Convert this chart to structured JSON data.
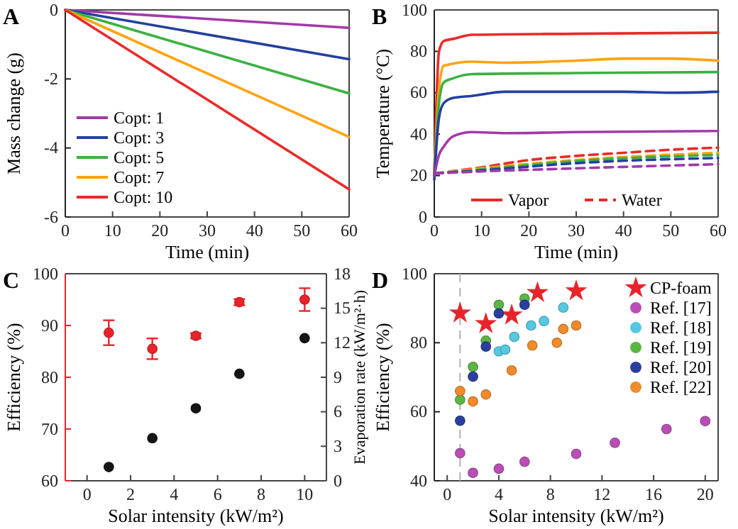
{
  "chart_data": [
    {
      "type": "line",
      "title": "A",
      "xlabel": "Time (min)",
      "ylabel": "Mass change (g)",
      "x": [
        0,
        60
      ],
      "xlim": [
        0,
        60
      ],
      "xticks": [
        0,
        10,
        20,
        30,
        40,
        50,
        60
      ],
      "ylim": [
        -6,
        0
      ],
      "yticks": [
        -6,
        -4,
        -2,
        0
      ],
      "legend": "bottom left",
      "series": [
        {
          "name": "Copt: 1",
          "color": "#a23aa8",
          "values": [
            0,
            -0.52
          ]
        },
        {
          "name": "Copt: 3",
          "color": "#24409e",
          "values": [
            0,
            -1.43
          ]
        },
        {
          "name": "Copt: 5",
          "color": "#3cb043",
          "values": [
            0,
            -2.42
          ]
        },
        {
          "name": "Copt: 7",
          "color": "#ffa30f",
          "values": [
            0,
            -3.68
          ]
        },
        {
          "name": "Copt: 10",
          "color": "#ea2a2a",
          "values": [
            0,
            -5.2
          ]
        }
      ]
    },
    {
      "type": "line",
      "title": "B",
      "xlabel": "Time (min)",
      "ylabel": "Temperature (°C)",
      "xlim": [
        0,
        60
      ],
      "xticks": [
        0,
        10,
        20,
        30,
        40,
        50,
        60
      ],
      "ylim": [
        0,
        100
      ],
      "yticks": [
        0,
        20,
        40,
        60,
        80,
        100
      ],
      "legend": "bottom",
      "series": [
        {
          "name": "Vapor",
          "color": "#ea2a2a",
          "line_style": "solid",
          "x": [
            0,
            1,
            2,
            4,
            8,
            30,
            60
          ],
          "values": [
            20,
            80,
            85,
            86,
            88,
            88.5,
            89
          ]
        },
        {
          "color": "#ffa30f",
          "line_style": "solid",
          "x": [
            0,
            1,
            2,
            8,
            15,
            30,
            40,
            50,
            60
          ],
          "values": [
            20,
            62,
            73,
            75,
            74.5,
            75.5,
            76.5,
            76.5,
            75.5
          ]
        },
        {
          "color": "#3cb043",
          "line_style": "solid",
          "x": [
            0,
            1,
            2,
            4,
            8,
            30,
            60
          ],
          "values": [
            20,
            55,
            65,
            67,
            69,
            69.5,
            70
          ]
        },
        {
          "color": "#24409e",
          "line_style": "solid",
          "x": [
            0,
            1,
            2,
            4,
            8,
            15,
            40,
            50,
            60
          ],
          "values": [
            18,
            48,
            55,
            57.5,
            58.5,
            60.5,
            60.5,
            60,
            60.5
          ]
        },
        {
          "color": "#a23aa8",
          "line_style": "solid",
          "x": [
            0,
            1,
            2,
            4,
            8,
            15,
            30,
            60
          ],
          "values": [
            20,
            30,
            34,
            39,
            41,
            40.5,
            41,
            41.5
          ]
        },
        {
          "name": "Water",
          "color": "#ea2a2a",
          "line_style": "dashed",
          "x": [
            0,
            10,
            20,
            30,
            40,
            50,
            60
          ],
          "values": [
            21,
            24,
            27.5,
            29.5,
            31,
            32.5,
            33.5
          ]
        },
        {
          "color": "#ffa30f",
          "line_style": "dashed",
          "x": [
            0,
            10,
            30,
            60
          ],
          "values": [
            21,
            23.5,
            27.5,
            31
          ]
        },
        {
          "color": "#3cb043",
          "line_style": "dashed",
          "x": [
            0,
            10,
            30,
            60
          ],
          "values": [
            21,
            23,
            27,
            30
          ]
        },
        {
          "color": "#24409e",
          "line_style": "dashed",
          "x": [
            0,
            10,
            30,
            60
          ],
          "values": [
            21,
            22.5,
            26,
            28.5
          ]
        },
        {
          "color": "#a23aa8",
          "line_style": "dashed",
          "x": [
            0,
            10,
            30,
            60
          ],
          "values": [
            21,
            22,
            23.5,
            25.5
          ]
        }
      ]
    },
    {
      "type": "scatter",
      "title": "C",
      "xlabel": "Solar intensity (kW/m²)",
      "ylabel": "Efficiency (%)",
      "y2label": "Evaporation rate (kW/m²·h)",
      "marker": "circle",
      "x": [
        1,
        3,
        5,
        7,
        10
      ],
      "xlim": [
        -1,
        11
      ],
      "xticks": [
        0,
        2,
        4,
        6,
        8,
        10
      ],
      "ylim": [
        60,
        100
      ],
      "yticks": [
        60,
        70,
        80,
        90,
        100
      ],
      "y2lim": [
        0,
        18
      ],
      "y2ticks": [
        0,
        3,
        6,
        9,
        12,
        15,
        18
      ],
      "series": [
        {
          "color": "#e8242b",
          "values": [
            88.6,
            85.5,
            88,
            94.5,
            95
          ],
          "errors": [
            2.4,
            2,
            0.5,
            0.6,
            2.2
          ]
        },
        {
          "color": "#151515",
          "axis": "y2",
          "values": [
            1.2,
            3.7,
            6.3,
            9.3,
            12.4
          ]
        }
      ]
    },
    {
      "type": "scatter",
      "title": "D",
      "xlabel": "Solar intensity (kW/m²)",
      "ylabel": "Efficiency (%)",
      "xlim": [
        -1,
        21
      ],
      "xticks": [
        0,
        4,
        8,
        12,
        16,
        20
      ],
      "ylim": [
        40,
        100
      ],
      "yticks": [
        40,
        60,
        80,
        100
      ],
      "legend": "top right",
      "ref_lines": [
        {
          "axis": "x",
          "value": 1,
          "color": "#b0b0b0",
          "line_style": "dashed"
        }
      ],
      "series": [
        {
          "name": "CP-foam",
          "color": "#e8242b",
          "marker": "star",
          "x": [
            1,
            3,
            5,
            7,
            10
          ],
          "values": [
            88.6,
            85.5,
            88,
            94.5,
            95
          ]
        },
        {
          "name": "Ref. [17]",
          "color": "#b94fb5",
          "marker": "circle",
          "x": [
            1,
            2,
            4,
            6,
            10,
            13,
            17,
            20
          ],
          "values": [
            48,
            42.3,
            43.5,
            45.5,
            47.8,
            51,
            55,
            57.3
          ]
        },
        {
          "name": "Ref. [18]",
          "color": "#56c8e0",
          "marker": "circle",
          "x": [
            4,
            4.5,
            5.2,
            6.5,
            7.5,
            9
          ],
          "values": [
            77.5,
            78,
            81.7,
            85,
            86.3,
            90.2
          ]
        },
        {
          "name": "Ref. [19]",
          "color": "#5cb545",
          "marker": "circle",
          "x": [
            1,
            2,
            3,
            4,
            6
          ],
          "values": [
            63.5,
            73,
            80.6,
            91,
            92.8
          ]
        },
        {
          "name": "Ref. [20]",
          "color": "#2b3f9e",
          "marker": "circle",
          "x": [
            1,
            2,
            3,
            4,
            6
          ],
          "values": [
            57.4,
            70.2,
            78.9,
            88.5,
            91
          ]
        },
        {
          "name": "Ref. [22]",
          "color": "#f08a2a",
          "marker": "circle",
          "x": [
            1,
            2,
            3,
            5,
            6.6,
            8.5,
            9,
            10
          ],
          "values": [
            66,
            63,
            65,
            72,
            79.2,
            80,
            84,
            85
          ]
        }
      ]
    }
  ]
}
